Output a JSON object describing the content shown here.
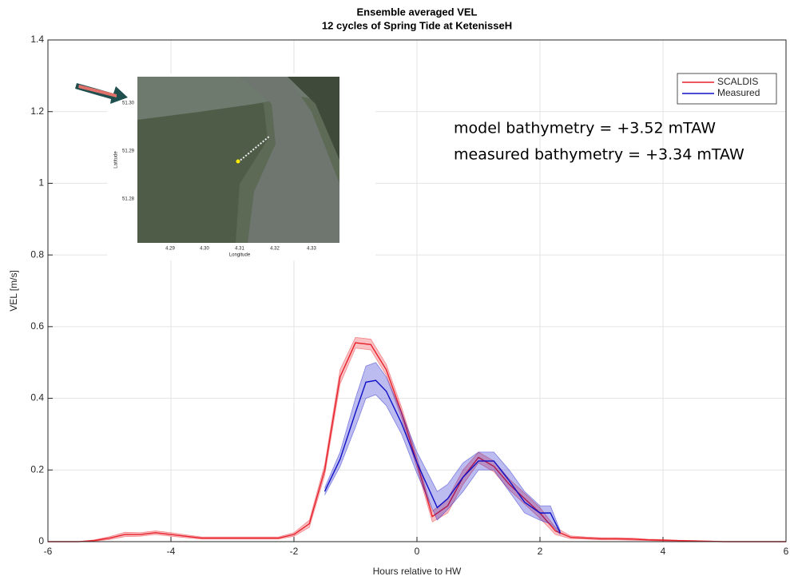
{
  "chart_data": {
    "type": "line",
    "title": "Ensemble averaged VEL",
    "subtitle": "12 cycles of Spring Tide at KetenisseH",
    "xlabel": "Hours relative to HW",
    "ylabel": "VEL [m/s]",
    "xlim": [
      -6,
      6
    ],
    "ylim": [
      0,
      1.4
    ],
    "xticks": [
      -6,
      -4,
      -2,
      0,
      2,
      4,
      6
    ],
    "yticks": [
      0,
      0.2,
      0.4,
      0.6,
      0.8,
      1,
      1.2,
      1.4
    ],
    "grid": true,
    "legend": "upper right",
    "annotations": [
      "model bathymetry =  +3.52 mTAW",
      "measured bathymetry = +3.34 mTAW"
    ],
    "inset": {
      "xlabel": "Longitude",
      "ylabel": "Latitude",
      "xticks": [
        "4.29",
        "4.30",
        "4.31",
        "4.32",
        "4.33"
      ],
      "yticks": [
        "51.30",
        "51.29",
        "51.28"
      ]
    },
    "series": [
      {
        "name": "SCALDIS",
        "color": "#e8202a",
        "x": [
          -6,
          -5.75,
          -5.5,
          -5.25,
          -5,
          -4.75,
          -4.5,
          -4.25,
          -4,
          -3.75,
          -3.5,
          -3.25,
          -3,
          -2.75,
          -2.5,
          -2.25,
          -2,
          -1.75,
          -1.5,
          -1.25,
          -1,
          -0.75,
          -0.5,
          -0.25,
          0,
          0.25,
          0.5,
          0.75,
          1,
          1.25,
          1.5,
          1.75,
          2,
          2.25,
          2.5,
          2.75,
          3,
          3.25,
          3.5,
          3.75,
          4,
          4.25,
          4.5,
          4.75,
          5,
          5.25,
          5.5,
          5.75,
          6
        ],
        "values": [
          0,
          0,
          0,
          0.003,
          0.01,
          0.02,
          0.02,
          0.025,
          0.02,
          0.015,
          0.01,
          0.01,
          0.01,
          0.01,
          0.01,
          0.01,
          0.02,
          0.05,
          0.2,
          0.46,
          0.555,
          0.55,
          0.48,
          0.36,
          0.22,
          0.07,
          0.1,
          0.18,
          0.235,
          0.21,
          0.16,
          0.12,
          0.08,
          0.03,
          0.012,
          0.01,
          0.008,
          0.008,
          0.007,
          0.005,
          0.004,
          0.003,
          0.002,
          0.001,
          0,
          0,
          0,
          0,
          0
        ],
        "upper": [
          0,
          0,
          0,
          0.005,
          0.014,
          0.026,
          0.025,
          0.03,
          0.025,
          0.019,
          0.013,
          0.013,
          0.013,
          0.013,
          0.013,
          0.013,
          0.025,
          0.06,
          0.215,
          0.48,
          0.57,
          0.565,
          0.495,
          0.375,
          0.235,
          0.085,
          0.12,
          0.2,
          0.25,
          0.225,
          0.175,
          0.135,
          0.095,
          0.04,
          0.016,
          0.013,
          0.011,
          0.011,
          0.01,
          0.007,
          0.006,
          0.004,
          0.003,
          0.002,
          0,
          0,
          0,
          0,
          0
        ],
        "lower": [
          0,
          0,
          0,
          0.001,
          0.006,
          0.014,
          0.015,
          0.02,
          0.015,
          0.011,
          0.007,
          0.007,
          0.007,
          0.007,
          0.007,
          0.007,
          0.015,
          0.04,
          0.185,
          0.44,
          0.54,
          0.535,
          0.465,
          0.345,
          0.205,
          0.055,
          0.08,
          0.16,
          0.22,
          0.195,
          0.145,
          0.105,
          0.065,
          0.02,
          0.008,
          0.007,
          0.005,
          0.005,
          0.004,
          0.003,
          0.002,
          0.002,
          0.001,
          0,
          0,
          0,
          0,
          0,
          0
        ]
      },
      {
        "name": "Measured",
        "color": "#1010c8",
        "x": [
          -1.5,
          -1.25,
          -1,
          -0.83,
          -0.67,
          -0.5,
          -0.25,
          0,
          0.33,
          0.5,
          0.75,
          1,
          1.25,
          1.5,
          1.75,
          2,
          2.17,
          2.33
        ],
        "values": [
          0.14,
          0.23,
          0.36,
          0.445,
          0.45,
          0.42,
          0.33,
          0.22,
          0.095,
          0.12,
          0.18,
          0.225,
          0.225,
          0.17,
          0.11,
          0.08,
          0.08,
          0.025
        ],
        "upper": [
          0.15,
          0.25,
          0.4,
          0.49,
          0.5,
          0.46,
          0.36,
          0.25,
          0.14,
          0.16,
          0.22,
          0.25,
          0.25,
          0.2,
          0.14,
          0.1,
          0.1,
          0.03
        ],
        "lower": [
          0.13,
          0.21,
          0.32,
          0.4,
          0.41,
          0.38,
          0.3,
          0.19,
          0.06,
          0.09,
          0.14,
          0.2,
          0.2,
          0.14,
          0.08,
          0.06,
          0.05,
          0.02
        ]
      }
    ]
  }
}
